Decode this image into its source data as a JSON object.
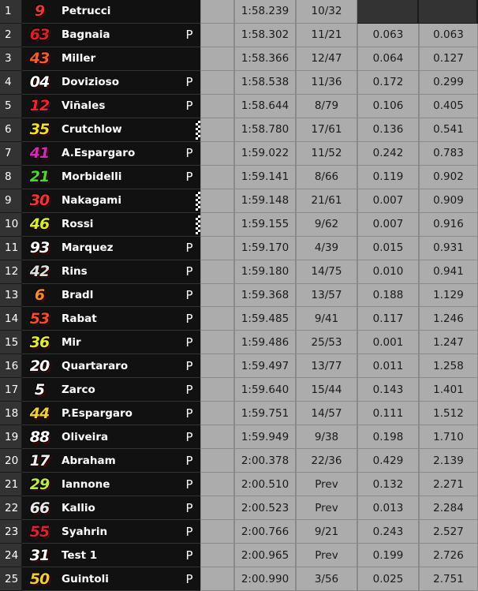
{
  "table": {
    "rows": [
      {
        "pos": "1",
        "number": "9",
        "number_color": "#e53935",
        "name": "Petrucci",
        "time": "1:58.239",
        "laps": "10/32"
      },
      {
        "pos": "2",
        "number": "63",
        "number_color": "#e02020",
        "name": "Bagnaia",
        "tyre": "P",
        "time": "1:58.302",
        "laps": "11/21",
        "gap": "0.063",
        "gap_first": "0.063"
      },
      {
        "pos": "3",
        "number": "43",
        "number_color": "#ff5a1f",
        "name": "Miller",
        "time": "1:58.366",
        "laps": "12/47",
        "gap": "0.064",
        "gap_first": "0.127"
      },
      {
        "pos": "4",
        "number": "04",
        "number_color": "#ffffff",
        "name": "Dovizioso",
        "tyre": "P",
        "time": "1:58.538",
        "laps": "11/36",
        "gap": "0.172",
        "gap_first": "0.299"
      },
      {
        "pos": "5",
        "number": "12",
        "number_color": "#ff2020",
        "name": "Viñales",
        "tyre": "P",
        "time": "1:58.644",
        "laps": "8/79",
        "gap": "0.106",
        "gap_first": "0.405"
      },
      {
        "pos": "6",
        "number": "35",
        "number_color": "#f5e11a",
        "name": "Crutchlow",
        "checkered_flag": true,
        "time": "1:58.780",
        "laps": "17/61",
        "gap": "0.136",
        "gap_first": "0.541"
      },
      {
        "pos": "7",
        "number": "41",
        "number_color": "#e020c0",
        "name": "A.Espargaro",
        "tyre": "P",
        "time": "1:59.022",
        "laps": "11/52",
        "gap": "0.242",
        "gap_first": "0.783"
      },
      {
        "pos": "8",
        "number": "21",
        "number_color": "#44dd22",
        "name": "Morbidelli",
        "tyre": "P",
        "time": "1:59.141",
        "laps": "8/66",
        "gap": "0.119",
        "gap_first": "0.902"
      },
      {
        "pos": "9",
        "number": "30",
        "number_color": "#ff3030",
        "name": "Nakagami",
        "checkered_flag": true,
        "time": "1:59.148",
        "laps": "21/61",
        "gap": "0.007",
        "gap_first": "0.909"
      },
      {
        "pos": "10",
        "number": "46",
        "number_color": "#d8f020",
        "name": "Rossi",
        "checkered_flag": true,
        "time": "1:59.155",
        "laps": "9/62",
        "gap": "0.007",
        "gap_first": "0.916"
      },
      {
        "pos": "11",
        "number": "93",
        "number_color": "#ffffff",
        "name": "Marquez",
        "tyre": "P",
        "time": "1:59.170",
        "laps": "4/39",
        "gap": "0.015",
        "gap_first": "0.931"
      },
      {
        "pos": "12",
        "number": "42",
        "number_color": "#dddddd",
        "name": "Rins",
        "tyre": "P",
        "time": "1:59.180",
        "laps": "14/75",
        "gap": "0.010",
        "gap_first": "0.941"
      },
      {
        "pos": "13",
        "number": "6",
        "number_color": "#ff8a1a",
        "name": "Bradl",
        "tyre": "P",
        "time": "1:59.368",
        "laps": "13/57",
        "gap": "0.188",
        "gap_first": "1.129"
      },
      {
        "pos": "14",
        "number": "53",
        "number_color": "#ff4a2a",
        "name": "Rabat",
        "tyre": "P",
        "time": "1:59.485",
        "laps": "9/41",
        "gap": "0.117",
        "gap_first": "1.246"
      },
      {
        "pos": "15",
        "number": "36",
        "number_color": "#e0f020",
        "name": "Mir",
        "tyre": "P",
        "time": "1:59.486",
        "laps": "25/53",
        "gap": "0.001",
        "gap_first": "1.247"
      },
      {
        "pos": "16",
        "number": "20",
        "number_color": "#ffffff",
        "name": "Quartararo",
        "tyre": "P",
        "time": "1:59.497",
        "laps": "13/77",
        "gap": "0.011",
        "gap_first": "1.258"
      },
      {
        "pos": "17",
        "number": "5",
        "number_color": "#ffffff",
        "name": "Zarco",
        "tyre": "P",
        "time": "1:59.640",
        "laps": "15/44",
        "gap": "0.143",
        "gap_first": "1.401"
      },
      {
        "pos": "18",
        "number": "44",
        "number_color": "#f0d020",
        "name": "P.Espargaro",
        "tyre": "P",
        "time": "1:59.751",
        "laps": "14/57",
        "gap": "0.111",
        "gap_first": "1.512"
      },
      {
        "pos": "19",
        "number": "88",
        "number_color": "#ffffff",
        "name": "Oliveira",
        "tyre": "P",
        "time": "1:59.949",
        "laps": "9/38",
        "gap": "0.198",
        "gap_first": "1.710"
      },
      {
        "pos": "20",
        "number": "17",
        "number_color": "#f0f0f0",
        "name": "Abraham",
        "tyre": "P",
        "time": "2:00.378",
        "laps": "22/36",
        "gap": "0.429",
        "gap_first": "2.139"
      },
      {
        "pos": "21",
        "number": "29",
        "number_color": "#b8f030",
        "name": "Iannone",
        "tyre": "P",
        "time": "2:00.510",
        "laps": "Prev",
        "gap": "0.132",
        "gap_first": "2.271"
      },
      {
        "pos": "22",
        "number": "66",
        "number_color": "#e8e8e8",
        "name": "Kallio",
        "tyre": "P",
        "time": "2:00.523",
        "laps": "Prev",
        "gap": "0.013",
        "gap_first": "2.284"
      },
      {
        "pos": "23",
        "number": "55",
        "number_color": "#e02030",
        "name": "Syahrin",
        "tyre": "P",
        "time": "2:00.766",
        "laps": "9/21",
        "gap": "0.243",
        "gap_first": "2.527"
      },
      {
        "pos": "24",
        "number": "31",
        "number_color": "#ffffff",
        "name": "Test 1",
        "tyre": "P",
        "time": "2:00.965",
        "laps": "Prev",
        "gap": "0.199",
        "gap_first": "2.726"
      },
      {
        "pos": "25",
        "number": "50",
        "number_color": "#f5d020",
        "name": "Guintoli",
        "tyre": "P",
        "time": "2:00.990",
        "laps": "3/56",
        "gap": "0.025",
        "gap_first": "2.751"
      }
    ]
  }
}
